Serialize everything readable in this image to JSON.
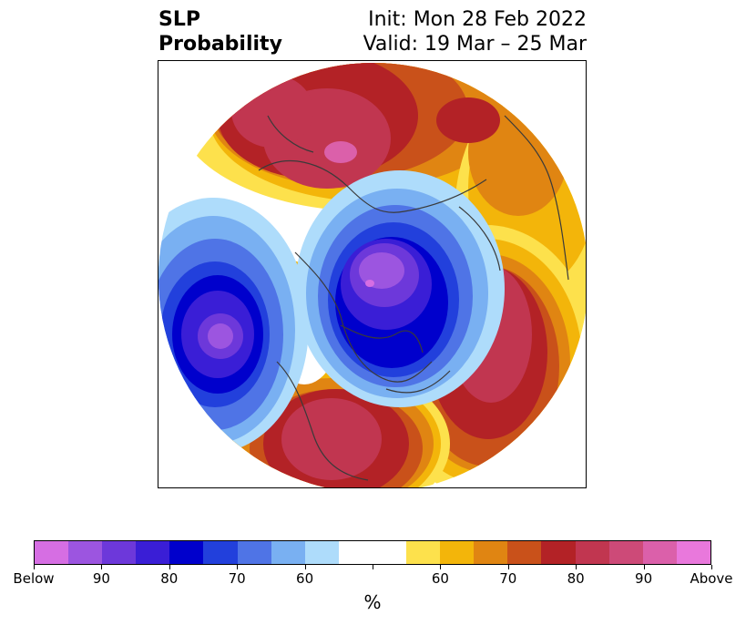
{
  "title": {
    "left_line1": "SLP",
    "left_line2": "Probability",
    "right_line1": "Init: Mon 28 Feb 2022",
    "right_line2": "Valid: 19 Mar – 25 Mar"
  },
  "colorbar": {
    "unit": "%",
    "colors": [
      "#d66ee3",
      "#9c55e0",
      "#6d38da",
      "#3a1ed6",
      "#0000cc",
      "#2240dc",
      "#4f74e6",
      "#79b0f2",
      "#aedcfb",
      "#ffffff",
      "#ffffff",
      "#fde14c",
      "#f3b50a",
      "#e08512",
      "#c9511a",
      "#b32226",
      "#c13650",
      "#cd4a78",
      "#db60aa",
      "#e978dc"
    ],
    "tick_labels": [
      "Below",
      "90",
      "80",
      "70",
      "60",
      "",
      "60",
      "70",
      "80",
      "90",
      "Above"
    ]
  },
  "map": {
    "region": "Northern Hemisphere polar projection",
    "features": [
      {
        "name": "gulf-of-alaska-below",
        "category": "Below",
        "level": "90"
      },
      {
        "name": "arctic-canada-below",
        "category": "Below",
        "level": "90"
      },
      {
        "name": "north-atlantic-above",
        "category": "Above",
        "level": "80"
      },
      {
        "name": "united-states-above",
        "category": "Above",
        "level": "80"
      },
      {
        "name": "siberia-above",
        "category": "Above",
        "level": "80"
      }
    ]
  }
}
